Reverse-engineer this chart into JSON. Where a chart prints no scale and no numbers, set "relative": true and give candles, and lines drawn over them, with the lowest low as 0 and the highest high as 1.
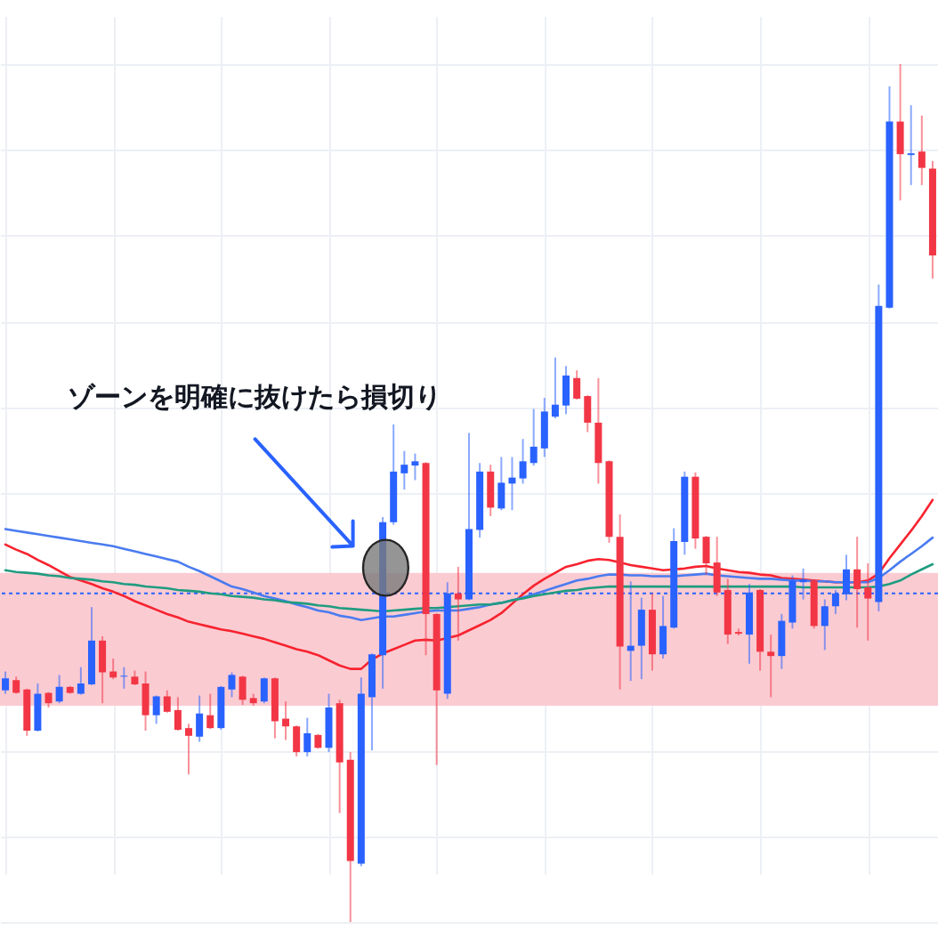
{
  "chart_data": {
    "type": "candlestick",
    "relative": true,
    "grid": true,
    "categories": [
      null,
      null,
      null,
      null,
      null,
      null,
      null,
      null,
      null,
      null,
      null,
      null,
      null,
      null,
      null,
      null,
      null,
      null,
      null,
      null,
      null,
      null,
      null,
      null,
      null,
      null,
      null,
      null,
      null,
      null,
      null,
      null,
      null,
      null,
      null,
      null,
      null,
      null,
      null,
      null,
      null,
      null,
      null,
      null,
      null,
      null,
      null,
      null,
      null,
      null,
      null,
      null,
      null,
      null,
      null,
      null,
      null,
      null,
      null,
      null,
      null,
      null,
      null,
      null,
      null,
      null,
      null,
      null,
      null,
      null,
      null,
      null,
      null,
      null,
      null,
      null,
      null,
      null,
      null,
      null,
      null,
      null,
      null,
      null,
      null,
      null,
      null
    ],
    "ohlc": [
      [
        0.27,
        0.292,
        0.266,
        0.284
      ],
      [
        0.282,
        0.286,
        0.266,
        0.267
      ],
      [
        0.271,
        0.272,
        0.217,
        0.223
      ],
      [
        0.223,
        0.278,
        0.222,
        0.266
      ],
      [
        0.267,
        0.268,
        0.25,
        0.255
      ],
      [
        0.257,
        0.288,
        0.255,
        0.274
      ],
      [
        0.274,
        0.275,
        0.266,
        0.267
      ],
      [
        0.266,
        0.297,
        0.265,
        0.278
      ],
      [
        0.277,
        0.367,
        0.276,
        0.328
      ],
      [
        0.328,
        0.333,
        0.255,
        0.291
      ],
      [
        0.292,
        0.307,
        0.283,
        0.285
      ],
      [
        0.286,
        0.297,
        0.272,
        0.287
      ],
      [
        0.286,
        0.293,
        0.276,
        0.277
      ],
      [
        0.278,
        0.292,
        0.223,
        0.241
      ],
      [
        0.241,
        0.264,
        0.231,
        0.263
      ],
      [
        0.263,
        0.27,
        0.244,
        0.245
      ],
      [
        0.247,
        0.262,
        0.223,
        0.224
      ],
      [
        0.226,
        0.231,
        0.172,
        0.217
      ],
      [
        0.216,
        0.264,
        0.21,
        0.243
      ],
      [
        0.241,
        0.266,
        0.225,
        0.226
      ],
      [
        0.226,
        0.275,
        0.224,
        0.274
      ],
      [
        0.271,
        0.291,
        0.262,
        0.288
      ],
      [
        0.286,
        0.287,
        0.253,
        0.259
      ],
      [
        0.261,
        0.266,
        0.252,
        0.255
      ],
      [
        0.257,
        0.285,
        0.255,
        0.284
      ],
      [
        0.284,
        0.285,
        0.214,
        0.234
      ],
      [
        0.237,
        0.257,
        0.212,
        0.228
      ],
      [
        0.228,
        0.229,
        0.193,
        0.198
      ],
      [
        0.198,
        0.238,
        0.193,
        0.22
      ],
      [
        0.218,
        0.219,
        0.202,
        0.203
      ],
      [
        0.203,
        0.266,
        0.198,
        0.25
      ],
      [
        0.255,
        0.259,
        0.127,
        0.186
      ],
      [
        0.189,
        0.198,
        0.0,
        0.071
      ],
      [
        0.068,
        0.285,
        0.065,
        0.266
      ],
      [
        0.262,
        0.313,
        0.2,
        0.312
      ],
      [
        0.311,
        0.472,
        0.272,
        0.466
      ],
      [
        0.466,
        0.58,
        0.463,
        0.525
      ],
      [
        0.523,
        0.549,
        0.504,
        0.533
      ],
      [
        0.532,
        0.546,
        0.515,
        0.537
      ],
      [
        0.535,
        0.536,
        0.311,
        0.359
      ],
      [
        0.359,
        0.36,
        0.183,
        0.27
      ],
      [
        0.266,
        0.396,
        0.26,
        0.383
      ],
      [
        0.383,
        0.414,
        0.328,
        0.376
      ],
      [
        0.376,
        0.57,
        0.375,
        0.458
      ],
      [
        0.457,
        0.535,
        0.448,
        0.525
      ],
      [
        0.525,
        0.533,
        0.473,
        0.483
      ],
      [
        0.482,
        0.542,
        0.48,
        0.512
      ],
      [
        0.511,
        0.542,
        0.48,
        0.518
      ],
      [
        0.517,
        0.563,
        0.511,
        0.537
      ],
      [
        0.535,
        0.598,
        0.532,
        0.554
      ],
      [
        0.552,
        0.611,
        0.542,
        0.595
      ],
      [
        0.589,
        0.658,
        0.587,
        0.603
      ],
      [
        0.602,
        0.648,
        0.592,
        0.637
      ],
      [
        0.634,
        0.643,
        0.609,
        0.61
      ],
      [
        0.613,
        0.614,
        0.571,
        0.582
      ],
      [
        0.582,
        0.634,
        0.511,
        0.535
      ],
      [
        0.537,
        0.538,
        0.442,
        0.449
      ],
      [
        0.449,
        0.475,
        0.271,
        0.321
      ],
      [
        0.316,
        0.397,
        0.281,
        0.322
      ],
      [
        0.322,
        0.378,
        0.283,
        0.364
      ],
      [
        0.364,
        0.383,
        0.293,
        0.312
      ],
      [
        0.312,
        0.38,
        0.307,
        0.345
      ],
      [
        0.343,
        0.459,
        0.342,
        0.444
      ],
      [
        0.443,
        0.525,
        0.428,
        0.519
      ],
      [
        0.519,
        0.524,
        0.435,
        0.447
      ],
      [
        0.449,
        0.45,
        0.405,
        0.418
      ],
      [
        0.419,
        0.449,
        0.38,
        0.384
      ],
      [
        0.387,
        0.4,
        0.324,
        0.335
      ],
      [
        0.338,
        0.342,
        0.334,
        0.336
      ],
      [
        0.335,
        0.394,
        0.301,
        0.384
      ],
      [
        0.387,
        0.388,
        0.293,
        0.315
      ],
      [
        0.315,
        0.335,
        0.262,
        0.31
      ],
      [
        0.31,
        0.359,
        0.295,
        0.351
      ],
      [
        0.349,
        0.404,
        0.342,
        0.398
      ],
      [
        0.396,
        0.412,
        0.376,
        0.399
      ],
      [
        0.398,
        0.399,
        0.342,
        0.345
      ],
      [
        0.345,
        0.376,
        0.317,
        0.368
      ],
      [
        0.368,
        0.387,
        0.359,
        0.383
      ],
      [
        0.382,
        0.428,
        0.375,
        0.411
      ],
      [
        0.411,
        0.449,
        0.343,
        0.388
      ],
      [
        0.39,
        0.418,
        0.328,
        0.377
      ],
      [
        0.373,
        0.743,
        0.362,
        0.718
      ],
      [
        0.716,
        0.974,
        0.715,
        0.933
      ],
      [
        0.933,
        1.0,
        0.841,
        0.895
      ],
      [
        0.894,
        0.952,
        0.859,
        0.896
      ],
      [
        0.898,
        0.94,
        0.859,
        0.879
      ],
      [
        0.878,
        0.887,
        0.75,
        0.777
      ]
    ],
    "colors": [
      "#2962ff",
      "#f23645",
      "#f23645",
      "#2962ff",
      "#f23645",
      "#2962ff",
      "#f23645",
      "#2962ff",
      "#2962ff",
      "#f23645",
      "#f23645",
      "#2962ff",
      "#f23645",
      "#f23645",
      "#2962ff",
      "#f23645",
      "#f23645",
      "#f23645",
      "#2962ff",
      "#f23645",
      "#2962ff",
      "#2962ff",
      "#f23645",
      "#f23645",
      "#2962ff",
      "#f23645",
      "#f23645",
      "#f23645",
      "#2962ff",
      "#f23645",
      "#2962ff",
      "#f23645",
      "#f23645",
      "#2962ff",
      "#2962ff",
      "#2962ff",
      "#2962ff",
      "#2962ff",
      "#2962ff",
      "#f23645",
      "#f23645",
      "#2962ff",
      "#f23645",
      "#2962ff",
      "#2962ff",
      "#f23645",
      "#2962ff",
      "#2962ff",
      "#2962ff",
      "#2962ff",
      "#2962ff",
      "#2962ff",
      "#2962ff",
      "#f23645",
      "#f23645",
      "#f23645",
      "#f23645",
      "#f23645",
      "#2962ff",
      "#2962ff",
      "#f23645",
      "#2962ff",
      "#2962ff",
      "#2962ff",
      "#f23645",
      "#f23645",
      "#f23645",
      "#f23645",
      "#f23645",
      "#2962ff",
      "#f23645",
      "#f23645",
      "#2962ff",
      "#2962ff",
      "#2962ff",
      "#f23645",
      "#2962ff",
      "#2962ff",
      "#2962ff",
      "#f23645",
      "#f23645",
      "#2962ff",
      "#2962ff",
      "#f23645",
      "#2962ff",
      "#f23645",
      "#f23645"
    ],
    "series": [
      {
        "type": "line",
        "color": "#f7232f",
        "values": [
          0.44,
          0.434,
          0.429,
          0.422,
          0.416,
          0.409,
          0.402,
          0.398,
          0.394,
          0.389,
          0.385,
          0.38,
          0.374,
          0.369,
          0.364,
          0.359,
          0.355,
          0.35,
          0.347,
          0.344,
          0.341,
          0.339,
          0.336,
          0.333,
          0.33,
          0.326,
          0.322,
          0.318,
          0.315,
          0.311,
          0.305,
          0.299,
          0.295,
          0.295,
          0.306,
          0.313,
          0.318,
          0.323,
          0.328,
          0.329,
          0.328,
          0.331,
          0.334,
          0.34,
          0.346,
          0.352,
          0.36,
          0.371,
          0.382,
          0.392,
          0.4,
          0.407,
          0.414,
          0.417,
          0.421,
          0.423,
          0.422,
          0.419,
          0.416,
          0.414,
          0.412,
          0.41,
          0.411,
          0.412,
          0.414,
          0.415,
          0.412,
          0.41,
          0.408,
          0.407,
          0.405,
          0.404,
          0.401,
          0.4,
          0.399,
          0.398,
          0.397,
          0.396,
          0.396,
          0.396,
          0.398,
          0.406,
          0.424,
          0.44,
          0.456,
          0.473,
          0.492
        ]
      },
      {
        "type": "line",
        "color": "#4a7bf0",
        "values": [
          0.458,
          0.456,
          0.454,
          0.452,
          0.45,
          0.448,
          0.446,
          0.444,
          0.442,
          0.44,
          0.438,
          0.435,
          0.432,
          0.429,
          0.426,
          0.423,
          0.42,
          0.414,
          0.409,
          0.403,
          0.397,
          0.391,
          0.388,
          0.384,
          0.38,
          0.377,
          0.374,
          0.37,
          0.367,
          0.363,
          0.361,
          0.357,
          0.355,
          0.352,
          0.354,
          0.356,
          0.356,
          0.358,
          0.36,
          0.362,
          0.363,
          0.363,
          0.363,
          0.365,
          0.367,
          0.37,
          0.372,
          0.375,
          0.378,
          0.382,
          0.386,
          0.39,
          0.394,
          0.398,
          0.4,
          0.403,
          0.405,
          0.405,
          0.404,
          0.404,
          0.403,
          0.403,
          0.403,
          0.404,
          0.405,
          0.406,
          0.404,
          0.403,
          0.402,
          0.401,
          0.4,
          0.4,
          0.399,
          0.398,
          0.398,
          0.397,
          0.397,
          0.396,
          0.396,
          0.396,
          0.396,
          0.401,
          0.41,
          0.42,
          0.429,
          0.438,
          0.448
        ]
      },
      {
        "type": "line",
        "color": "#1f9c80",
        "values": [
          0.41,
          0.408,
          0.407,
          0.406,
          0.404,
          0.403,
          0.401,
          0.4,
          0.399,
          0.397,
          0.396,
          0.394,
          0.393,
          0.391,
          0.39,
          0.389,
          0.387,
          0.386,
          0.385,
          0.383,
          0.382,
          0.38,
          0.379,
          0.378,
          0.376,
          0.375,
          0.373,
          0.372,
          0.371,
          0.369,
          0.368,
          0.366,
          0.365,
          0.364,
          0.363,
          0.362,
          0.363,
          0.364,
          0.365,
          0.366,
          0.366,
          0.367,
          0.368,
          0.369,
          0.37,
          0.37,
          0.372,
          0.375,
          0.377,
          0.38,
          0.382,
          0.384,
          0.386,
          0.387,
          0.389,
          0.39,
          0.391,
          0.391,
          0.391,
          0.391,
          0.391,
          0.391,
          0.391,
          0.391,
          0.391,
          0.391,
          0.391,
          0.391,
          0.391,
          0.391,
          0.391,
          0.391,
          0.391,
          0.391,
          0.39,
          0.39,
          0.39,
          0.39,
          0.39,
          0.39,
          0.39,
          0.391,
          0.394,
          0.398,
          0.405,
          0.411,
          0.417
        ]
      }
    ],
    "bands": [
      {
        "axis": "y",
        "from": 0.252,
        "to": 0.407,
        "color": "#fbcbd2"
      }
    ],
    "ref_lines": [
      {
        "axis": "y",
        "value": 0.383,
        "color": "#2962ff",
        "line_style": "dotted"
      }
    ],
    "annotations": [
      "ゾーンを明確に抜けたら損切り"
    ]
  }
}
